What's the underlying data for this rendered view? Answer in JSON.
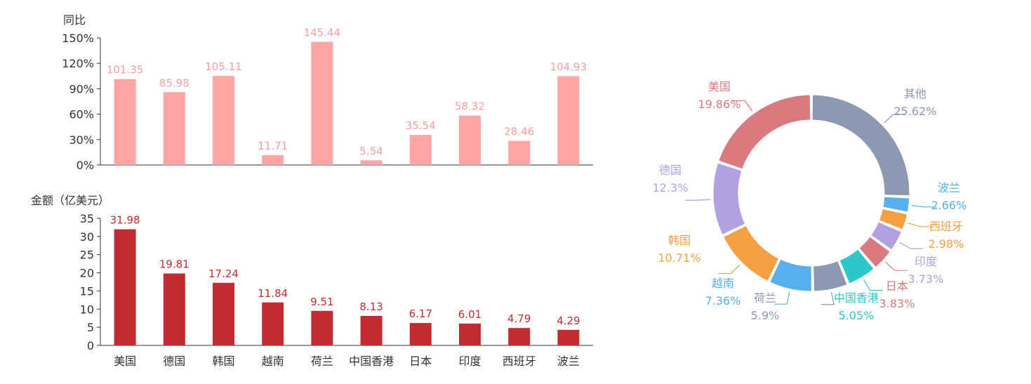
{
  "chart_data": [
    {
      "type": "bar",
      "ylabel": "同比",
      "categories": [
        "美国",
        "德国",
        "韩国",
        "越南",
        "荷兰",
        "中国香港",
        "日本",
        "印度",
        "西班牙",
        "波兰"
      ],
      "values": [
        101.35,
        85.98,
        105.11,
        11.71,
        145.44,
        5.54,
        35.54,
        58.32,
        28.46,
        104.93
      ],
      "value_labels": [
        "101.35",
        "85.98",
        "105.11",
        "11.71",
        "145.44",
        "5.54",
        "35.54",
        "58.32",
        "28.46",
        "104.93"
      ],
      "ylim": [
        0,
        150
      ],
      "yticks": [
        "0%",
        "30%",
        "60%",
        "90%",
        "120%",
        "150%"
      ],
      "color": "#ffa5a5",
      "label_color": "#f4a0a0"
    },
    {
      "type": "bar",
      "ylabel": "金额（亿美元）",
      "categories": [
        "美国",
        "德国",
        "韩国",
        "越南",
        "荷兰",
        "中国香港",
        "日本",
        "印度",
        "西班牙",
        "波兰"
      ],
      "values": [
        31.98,
        19.81,
        17.24,
        11.84,
        9.51,
        8.13,
        6.17,
        6.01,
        4.79,
        4.29
      ],
      "value_labels": [
        "31.98",
        "19.81",
        "17.24",
        "11.84",
        "9.51",
        "8.13",
        "6.17",
        "6.01",
        "4.79",
        "4.29"
      ],
      "ylim": [
        0,
        35
      ],
      "yticks": [
        "0",
        "5",
        "10",
        "15",
        "20",
        "25",
        "30",
        "35"
      ],
      "color": "#c12c33",
      "label_color": "#c12c33"
    },
    {
      "type": "pie",
      "donut": true,
      "slices": [
        {
          "name": "其他",
          "value": 25.62,
          "label": "25.62%",
          "color": "#8d98b3"
        },
        {
          "name": "波兰",
          "value": 2.66,
          "label": "2.66%",
          "color": "#58afed"
        },
        {
          "name": "西班牙",
          "value": 2.98,
          "label": "2.98%",
          "color": "#f49f42"
        },
        {
          "name": "印度",
          "value": 3.73,
          "label": "3.73%",
          "color": "#b3a0e0"
        },
        {
          "name": "日本",
          "value": 3.83,
          "label": "3.83%",
          "color": "#d87a80"
        },
        {
          "name": "中国香港",
          "value": 5.05,
          "label": "5.05%",
          "color": "#2ec7c9"
        },
        {
          "name": "荷兰",
          "value": 5.9,
          "label": "5.9%",
          "color": "#8d98b3"
        },
        {
          "name": "越南",
          "value": 7.36,
          "label": "7.36%",
          "color": "#58afed"
        },
        {
          "name": "韩国",
          "value": 10.71,
          "label": "10.71%",
          "color": "#f49f42"
        },
        {
          "name": "德国",
          "value": 12.3,
          "label": "12.3%",
          "color": "#b3a0e0"
        },
        {
          "name": "美国",
          "value": 19.86,
          "label": "19.86%",
          "color": "#d87a80"
        }
      ]
    }
  ]
}
